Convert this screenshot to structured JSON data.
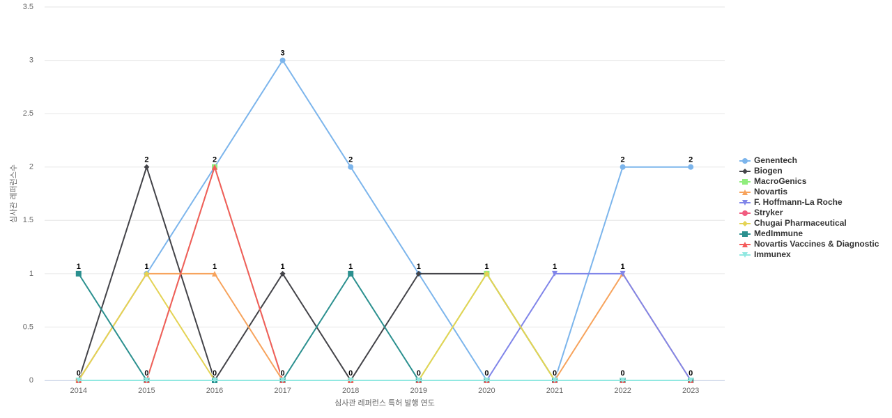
{
  "chart_data": {
    "type": "line",
    "x_label": "심사관 레퍼런스 특허 발행 연도",
    "y_label": "심사관 레퍼런스수",
    "categories": [
      "2014",
      "2015",
      "2016",
      "2017",
      "2018",
      "2019",
      "2020",
      "2021",
      "2022",
      "2023"
    ],
    "ylim": [
      0,
      3.5
    ],
    "yticks": [
      0,
      0.5,
      1,
      1.5,
      2,
      2.5,
      3,
      3.5
    ],
    "grid": true,
    "series": [
      {
        "name": "Genentech",
        "color": "#7cb5ec",
        "values": [
          0,
          1,
          2,
          3,
          2,
          1,
          0,
          0,
          2,
          2
        ]
      },
      {
        "name": "Biogen",
        "color": "#434348",
        "values": [
          0,
          2,
          0,
          1,
          0,
          1,
          1,
          0,
          0,
          0
        ]
      },
      {
        "name": "MacroGenics",
        "color": "#90ed7d",
        "values": [
          0,
          0,
          2,
          0,
          0,
          0,
          1,
          0,
          0,
          0
        ]
      },
      {
        "name": "Novartis",
        "color": "#f7a35c",
        "values": [
          0,
          1,
          1,
          0,
          0,
          0,
          0,
          0,
          1,
          0
        ]
      },
      {
        "name": "F. Hoffmann-La Roche",
        "color": "#8085e9",
        "values": [
          0,
          0,
          0,
          0,
          0,
          0,
          0,
          1,
          1,
          0
        ]
      },
      {
        "name": "Stryker",
        "color": "#f15c80",
        "values": [
          0,
          0,
          0,
          0,
          0,
          0,
          0,
          0,
          0,
          0
        ]
      },
      {
        "name": "Chugai Pharmaceutical",
        "color": "#e4d354",
        "values": [
          0,
          1,
          0,
          0,
          0,
          0,
          1,
          0,
          0,
          0
        ]
      },
      {
        "name": "MedImmune",
        "color": "#2b908f",
        "values": [
          1,
          0,
          0,
          0,
          1,
          0,
          0,
          0,
          0,
          0
        ]
      },
      {
        "name": "Novartis Vaccines & Diagnostic",
        "color": "#f45b5b",
        "values": [
          0,
          0,
          2,
          0,
          0,
          0,
          0,
          0,
          0,
          0
        ]
      },
      {
        "name": "Immunex",
        "color": "#91e8e1",
        "values": [
          0,
          0,
          0,
          0,
          0,
          0,
          0,
          0,
          0,
          0
        ]
      }
    ]
  }
}
